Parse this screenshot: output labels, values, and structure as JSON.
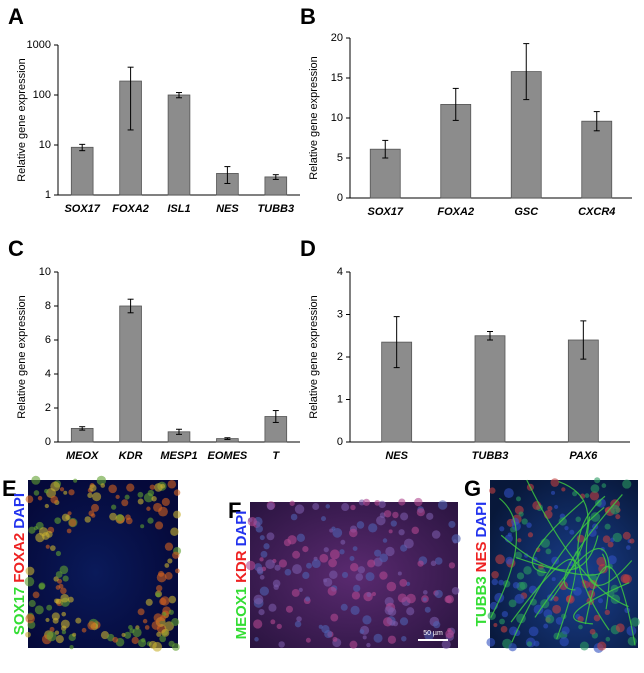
{
  "chart_data": [
    {
      "panel": "A",
      "type": "bar",
      "log": true,
      "y_label": "Relative gene expression",
      "categories": [
        "SOX17",
        "FOXA2",
        "ISL1",
        "NES",
        "TUBB3"
      ],
      "values": [
        9,
        190,
        100,
        2.7,
        2.3
      ],
      "errors": [
        1.3,
        170,
        12,
        1.0,
        0.25
      ],
      "color": "#8c8c8c",
      "ylim": [
        1,
        1000
      ],
      "yticks": [
        1,
        10,
        100,
        1000
      ]
    },
    {
      "panel": "B",
      "type": "bar",
      "log": false,
      "y_label": "Relative gene expression",
      "categories": [
        "SOX17",
        "FOXA2",
        "GSC",
        "CXCR4"
      ],
      "values": [
        6.1,
        11.7,
        15.8,
        9.6
      ],
      "errors": [
        1.1,
        2.0,
        3.5,
        1.2
      ],
      "color": "#8c8c8c",
      "ylim": [
        0,
        20
      ],
      "yticks": [
        0,
        5,
        10,
        15,
        20
      ]
    },
    {
      "panel": "C",
      "type": "bar",
      "log": false,
      "y_label": "Relative gene expression",
      "categories": [
        "MEOX",
        "KDR",
        "MESP1",
        "EOMES",
        "T"
      ],
      "values": [
        0.8,
        8.0,
        0.6,
        0.2,
        1.5
      ],
      "errors": [
        0.1,
        0.4,
        0.15,
        0.05,
        0.35
      ],
      "color": "#8c8c8c",
      "ylim": [
        0,
        10
      ],
      "yticks": [
        0,
        2,
        4,
        6,
        8,
        10
      ]
    },
    {
      "panel": "D",
      "type": "bar",
      "log": false,
      "y_label": "Relative gene expression",
      "categories": [
        "NES",
        "TUBB3",
        "PAX6"
      ],
      "values": [
        2.35,
        2.5,
        2.4
      ],
      "errors": [
        0.6,
        0.1,
        0.45
      ],
      "color": "#8c8c8c",
      "ylim": [
        0,
        4
      ],
      "yticks": [
        0,
        1,
        2,
        3,
        4
      ]
    }
  ],
  "images": [
    {
      "panel": "E",
      "stains": [
        {
          "text": "SOX17",
          "color": "#33dd33"
        },
        {
          "text": "FOXA2",
          "color": "#ee2222"
        },
        {
          "text": "DAPI",
          "color": "#2233ee"
        }
      ]
    },
    {
      "panel": "F",
      "stains": [
        {
          "text": "MEOX1",
          "color": "#33dd33"
        },
        {
          "text": "KDR",
          "color": "#ee2222"
        },
        {
          "text": "DAPI",
          "color": "#2233ee"
        }
      ],
      "scale_bar": "50 µm"
    },
    {
      "panel": "G",
      "stains": [
        {
          "text": "TUBB3",
          "color": "#33dd33"
        },
        {
          "text": "NES",
          "color": "#ee2222"
        },
        {
          "text": "DAPI",
          "color": "#2233ee"
        }
      ]
    }
  ]
}
